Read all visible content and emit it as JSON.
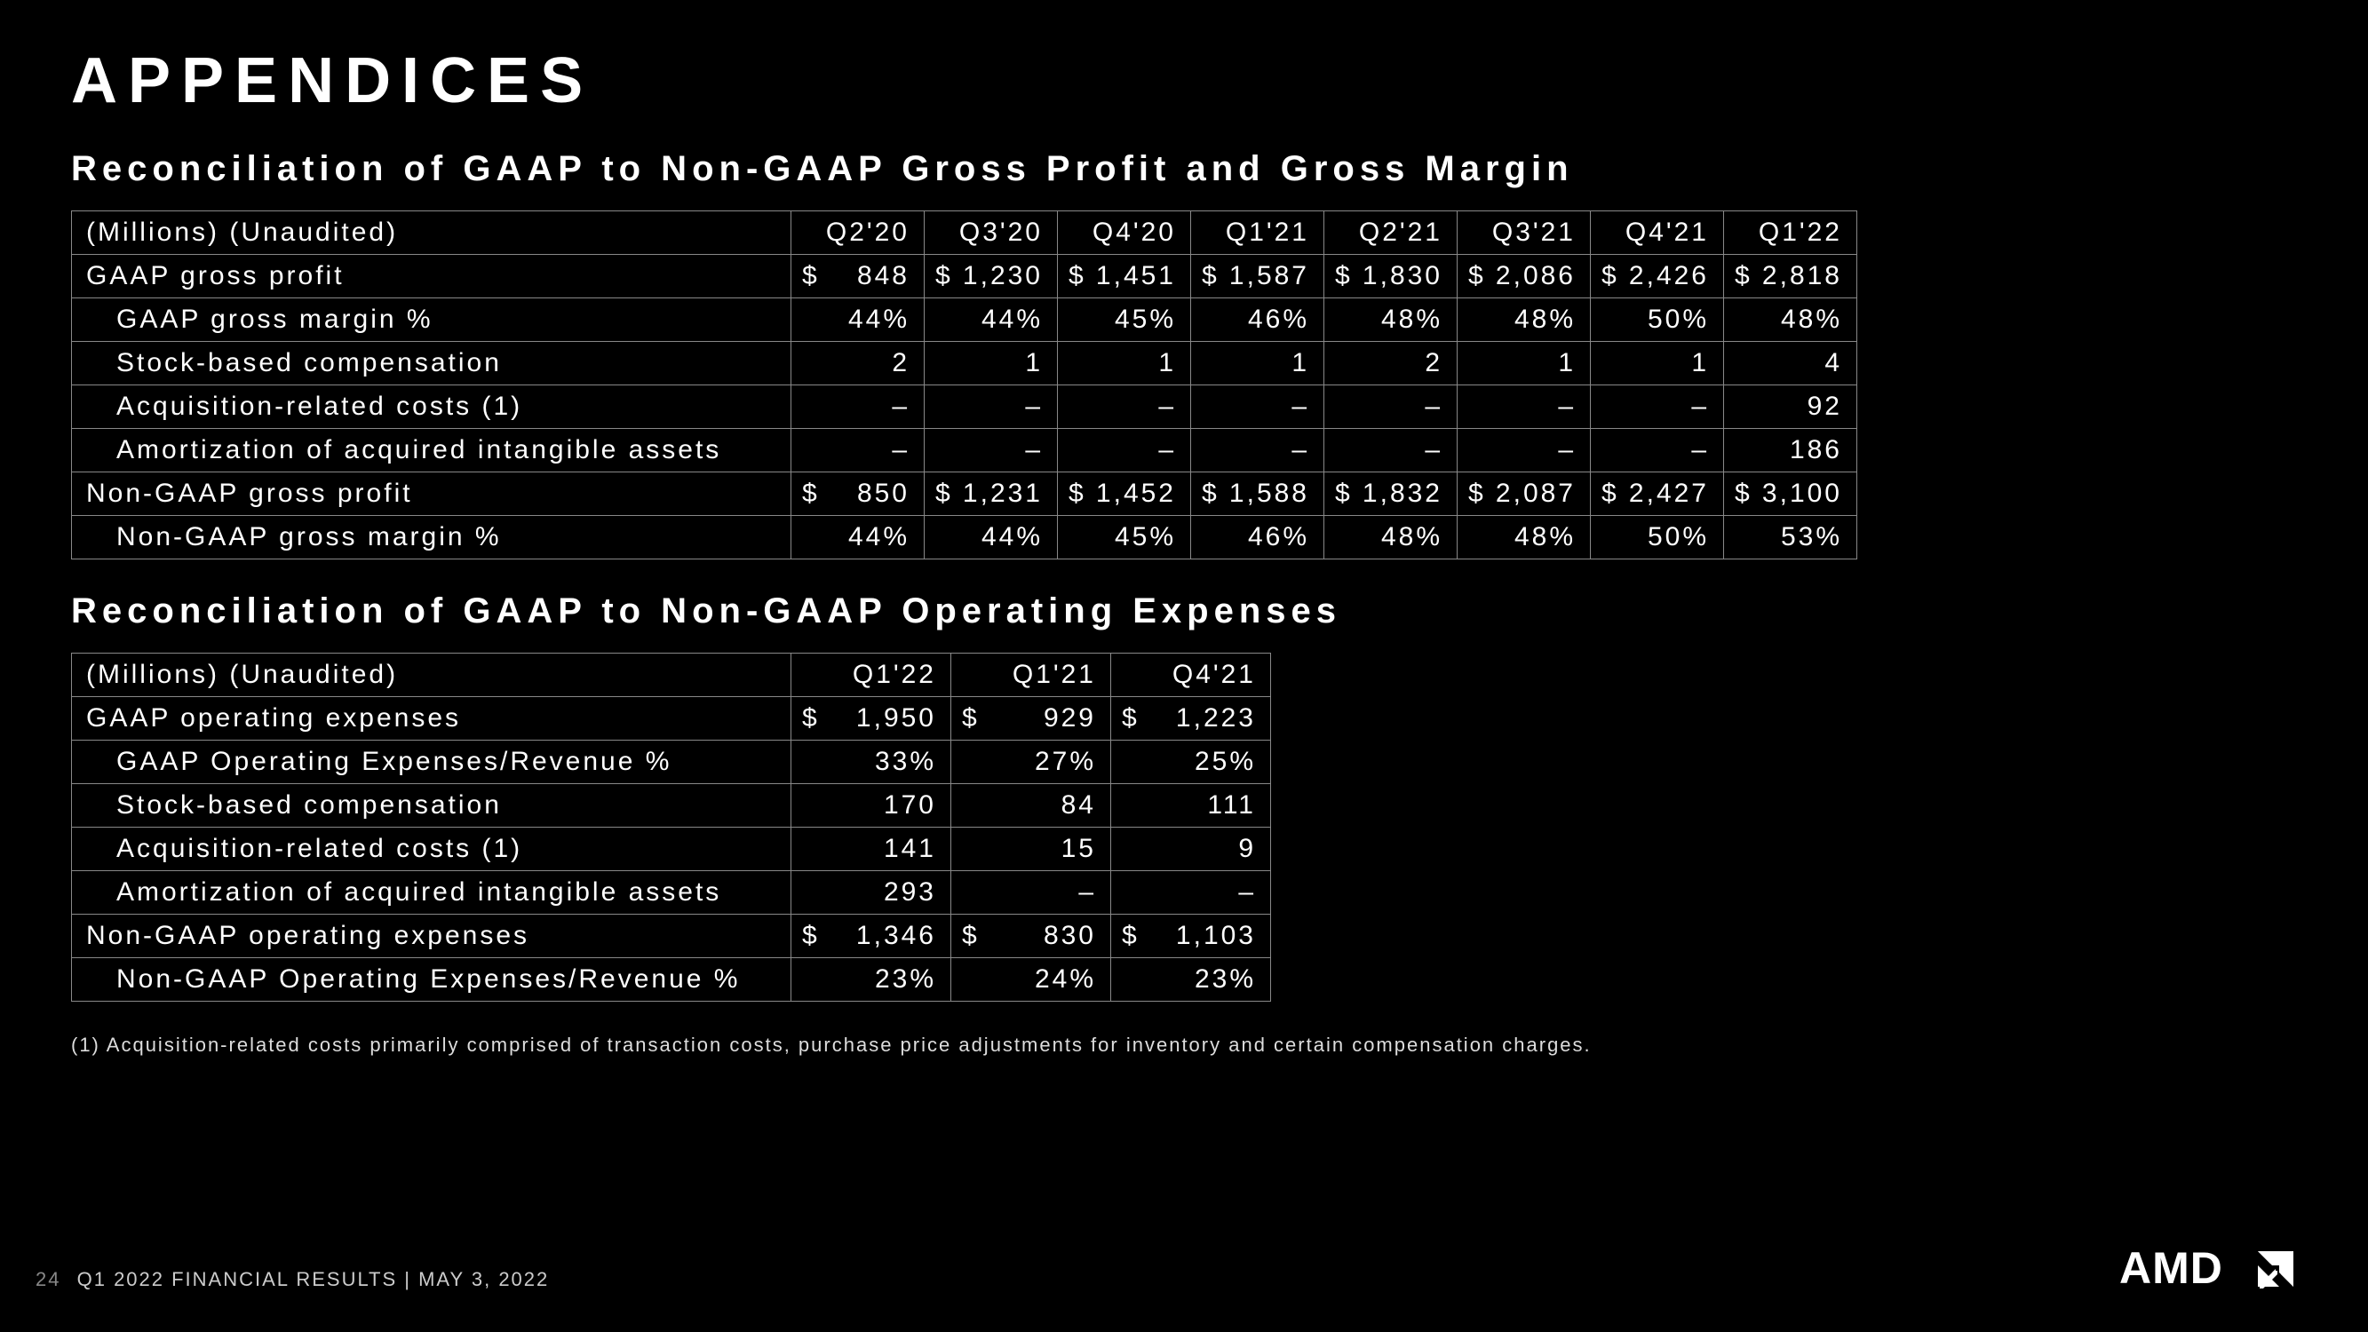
{
  "page": {
    "title": "APPENDICES",
    "subtitle1": "Reconciliation of GAAP to Non-GAAP Gross Profit and Gross Margin",
    "subtitle2": "Reconciliation of GAAP to Non-GAAP Operating Expenses",
    "footnote": "(1)  Acquisition-related costs primarily comprised of transaction costs, purchase price adjustments for inventory and certain compensation charges.",
    "footer_page": "24",
    "footer_text": "Q1 2022 FINANCIAL RESULTS   |   MAY 3, 2022",
    "logo_text": "AMD",
    "background_color": "#000000",
    "text_color": "#ffffff",
    "border_color": "#888888"
  },
  "table1": {
    "header_label": "(Millions) (Unaudited)",
    "cols": [
      "Q2'20",
      "Q3'20",
      "Q4'20",
      "Q1'21",
      "Q2'21",
      "Q3'21",
      "Q4'21",
      "Q1'22"
    ],
    "rows": [
      {
        "label": "GAAP gross profit",
        "indent": false,
        "currency": true,
        "vals": [
          "848",
          "1,230",
          "1,451",
          "1,587",
          "1,830",
          "2,086",
          "2,426",
          "2,818"
        ]
      },
      {
        "label": "GAAP gross margin %",
        "indent": true,
        "currency": false,
        "vals": [
          "44%",
          "44%",
          "45%",
          "46%",
          "48%",
          "48%",
          "50%",
          "48%"
        ]
      },
      {
        "label": "Stock-based compensation",
        "indent": true,
        "currency": false,
        "vals": [
          "2",
          "1",
          "1",
          "1",
          "2",
          "1",
          "1",
          "4"
        ]
      },
      {
        "label": "Acquisition-related costs (1)",
        "indent": true,
        "currency": false,
        "vals": [
          "–",
          "–",
          "–",
          "–",
          "–",
          "–",
          "–",
          "92"
        ]
      },
      {
        "label": "Amortization of acquired intangible assets",
        "indent": true,
        "currency": false,
        "vals": [
          "–",
          "–",
          "–",
          "–",
          "–",
          "–",
          "–",
          "186"
        ]
      },
      {
        "label": "Non-GAAP gross profit",
        "indent": false,
        "currency": true,
        "vals": [
          "850",
          "1,231",
          "1,452",
          "1,588",
          "1,832",
          "2,087",
          "2,427",
          "3,100"
        ]
      },
      {
        "label": "Non-GAAP gross margin %",
        "indent": true,
        "currency": false,
        "vals": [
          "44%",
          "44%",
          "45%",
          "46%",
          "48%",
          "48%",
          "50%",
          "53%"
        ]
      }
    ]
  },
  "table2": {
    "header_label": "(Millions) (Unaudited)",
    "cols": [
      "Q1'22",
      "Q1'21",
      "Q4'21"
    ],
    "rows": [
      {
        "label": "GAAP operating expenses",
        "indent": false,
        "currency": true,
        "vals": [
          "1,950",
          "929",
          "1,223"
        ]
      },
      {
        "label": "GAAP Operating Expenses/Revenue %",
        "indent": true,
        "currency": false,
        "vals": [
          "33%",
          "27%",
          "25%"
        ]
      },
      {
        "label": "Stock-based compensation",
        "indent": true,
        "currency": false,
        "vals": [
          "170",
          "84",
          "111"
        ]
      },
      {
        "label": "Acquisition-related costs (1)",
        "indent": true,
        "currency": false,
        "vals": [
          "141",
          "15",
          "9"
        ]
      },
      {
        "label": "Amortization of acquired intangible assets",
        "indent": true,
        "currency": false,
        "vals": [
          "293",
          "–",
          "–"
        ]
      },
      {
        "label": "Non-GAAP operating expenses",
        "indent": false,
        "currency": true,
        "vals": [
          "1,346",
          "830",
          "1,103"
        ]
      },
      {
        "label": "Non-GAAP Operating Expenses/Revenue %",
        "indent": true,
        "currency": false,
        "vals": [
          "23%",
          "24%",
          "23%"
        ]
      }
    ]
  }
}
